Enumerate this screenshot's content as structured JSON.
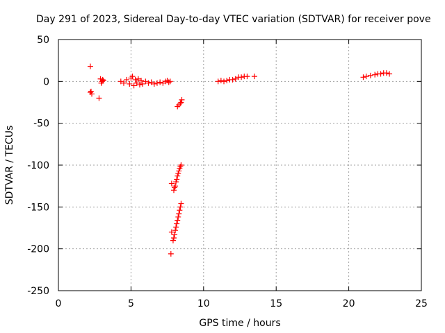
{
  "chart_data": {
    "type": "scatter",
    "title": "Day 291 of 2023, Sidereal Day-to-day VTEC variation (SDTVAR) for receiver pove",
    "xlabel": "GPS time / hours",
    "ylabel": "SDTVAR / TECUs",
    "xlim": [
      0,
      25
    ],
    "ylim": [
      -250,
      50
    ],
    "xticks": [
      0,
      5,
      10,
      15,
      20,
      25
    ],
    "yticks": [
      50,
      0,
      -50,
      -100,
      -150,
      -200,
      -250
    ],
    "grid": true,
    "marker": "plus",
    "color": "#ff0000",
    "series": [
      {
        "name": "SDTVAR",
        "points": [
          [
            2.2,
            18
          ],
          [
            2.25,
            -12
          ],
          [
            2.3,
            -15
          ],
          [
            2.2,
            -13
          ],
          [
            2.8,
            -20
          ],
          [
            2.9,
            3
          ],
          [
            3.0,
            0
          ],
          [
            3.05,
            2
          ],
          [
            2.95,
            -2
          ],
          [
            3.1,
            1
          ],
          [
            4.3,
            0
          ],
          [
            4.5,
            -2
          ],
          [
            4.7,
            2
          ],
          [
            4.9,
            -3
          ],
          [
            5.0,
            4
          ],
          [
            5.1,
            6
          ],
          [
            5.2,
            -5
          ],
          [
            5.3,
            2
          ],
          [
            5.4,
            -2
          ],
          [
            5.5,
            3
          ],
          [
            5.6,
            -4
          ],
          [
            5.7,
            1
          ],
          [
            5.8,
            -3
          ],
          [
            6.0,
            0
          ],
          [
            6.2,
            -2
          ],
          [
            6.4,
            -1
          ],
          [
            6.6,
            -3
          ],
          [
            6.8,
            -2
          ],
          [
            7.0,
            -1
          ],
          [
            7.2,
            -2
          ],
          [
            7.4,
            0
          ],
          [
            7.5,
            1
          ],
          [
            7.6,
            -1
          ],
          [
            7.7,
            0
          ],
          [
            8.2,
            -30
          ],
          [
            8.3,
            -28
          ],
          [
            8.4,
            -26
          ],
          [
            8.5,
            -22
          ],
          [
            8.45,
            -25
          ],
          [
            7.8,
            -122
          ],
          [
            7.95,
            -130
          ],
          [
            8.0,
            -127
          ],
          [
            8.05,
            -125
          ],
          [
            8.1,
            -120
          ],
          [
            8.15,
            -117
          ],
          [
            8.2,
            -113
          ],
          [
            8.25,
            -110
          ],
          [
            8.3,
            -107
          ],
          [
            8.35,
            -104
          ],
          [
            8.4,
            -102
          ],
          [
            8.45,
            -100
          ],
          [
            7.75,
            -206
          ],
          [
            7.8,
            -180
          ],
          [
            7.9,
            -190
          ],
          [
            7.95,
            -187
          ],
          [
            8.0,
            -183
          ],
          [
            8.05,
            -178
          ],
          [
            8.1,
            -174
          ],
          [
            8.15,
            -170
          ],
          [
            8.2,
            -166
          ],
          [
            8.25,
            -162
          ],
          [
            8.3,
            -158
          ],
          [
            8.35,
            -154
          ],
          [
            8.4,
            -150
          ],
          [
            8.45,
            -146
          ],
          [
            11.0,
            0
          ],
          [
            11.2,
            1
          ],
          [
            11.4,
            0
          ],
          [
            11.6,
            1
          ],
          [
            11.8,
            2
          ],
          [
            12.0,
            2
          ],
          [
            12.2,
            3
          ],
          [
            12.4,
            5
          ],
          [
            12.6,
            5
          ],
          [
            12.8,
            6
          ],
          [
            13.0,
            6
          ],
          [
            13.5,
            6
          ],
          [
            21.0,
            5
          ],
          [
            21.2,
            6
          ],
          [
            21.5,
            7
          ],
          [
            21.8,
            8
          ],
          [
            22.0,
            9
          ],
          [
            22.2,
            9
          ],
          [
            22.4,
            10
          ],
          [
            22.6,
            10
          ],
          [
            22.8,
            9
          ]
        ]
      }
    ]
  }
}
